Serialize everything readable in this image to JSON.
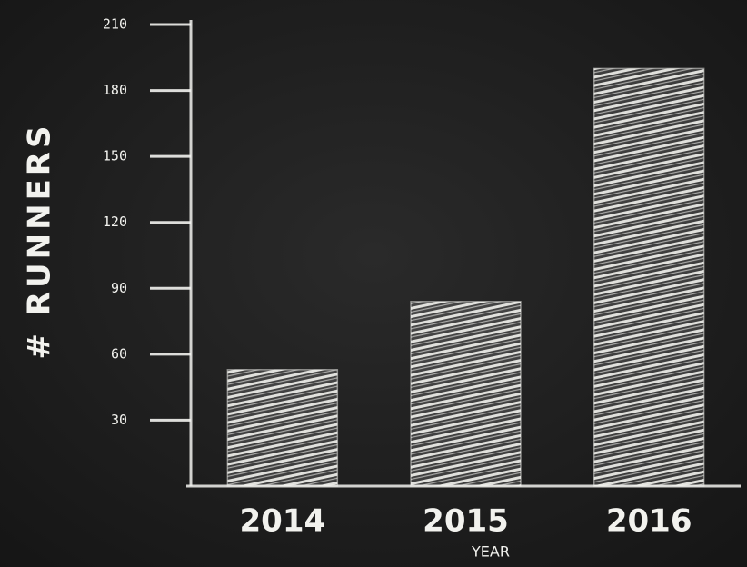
{
  "chart_data": {
    "type": "bar",
    "y_label": "# RUNNERS",
    "x_label": "YEAR",
    "categories": [
      "2014",
      "2015",
      "2016"
    ],
    "values": [
      53,
      84,
      190
    ],
    "color": "#f2f2ee",
    "ylim": [
      0,
      210
    ],
    "yticks": [
      30,
      60,
      90,
      120,
      150,
      180,
      210
    ],
    "grid": false
  }
}
